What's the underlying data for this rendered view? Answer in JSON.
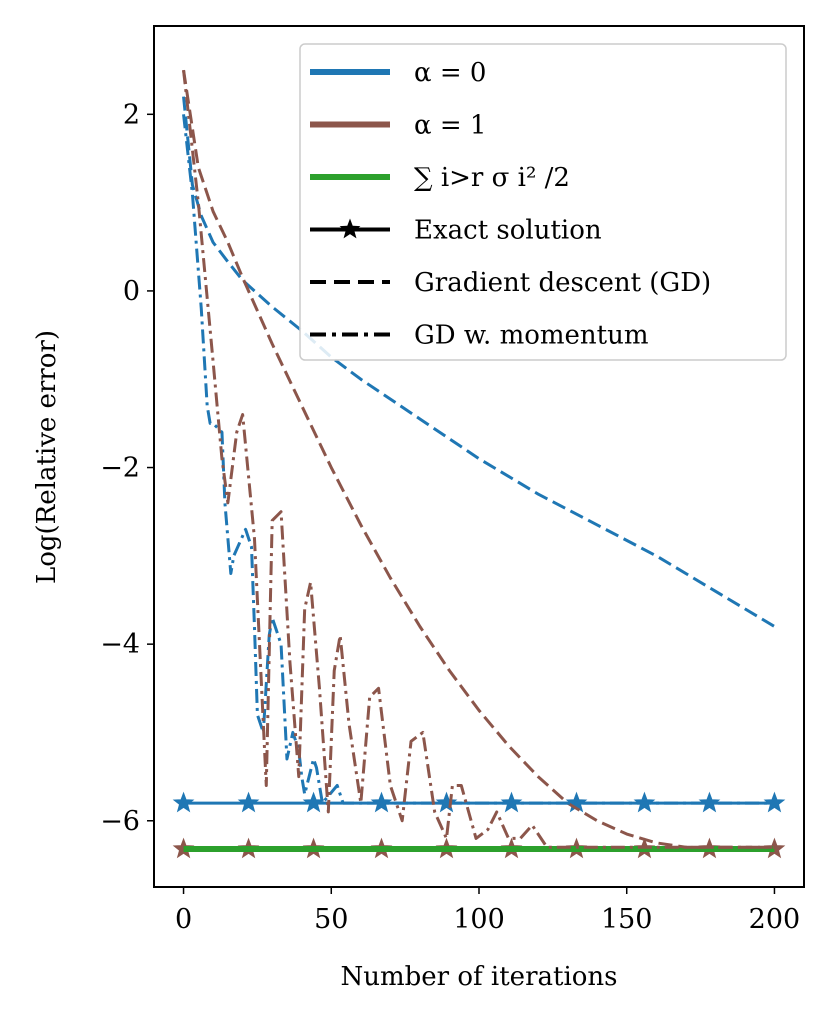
{
  "chart_data": {
    "type": "line",
    "title": "",
    "xlabel": "Number of iterations",
    "ylabel": "Log(Relative error)",
    "xlim": [
      -10,
      210
    ],
    "ylim": [
      -6.75,
      3.0
    ],
    "xticks": [
      0,
      50,
      100,
      150,
      200
    ],
    "xtick_labels": [
      "0",
      "50",
      "100",
      "150",
      "200"
    ],
    "yticks": [
      -6,
      -4,
      -2,
      0,
      2
    ],
    "ytick_labels": [
      "−6",
      "−4",
      "−2",
      "0",
      "2"
    ],
    "grid": false,
    "legend_position": "top-right",
    "colors": {
      "alpha0": "#1f77b4",
      "alpha1": "#8c564b",
      "sum": "#2ca02c",
      "black": "#000000"
    },
    "legend": [
      {
        "label": "α = 0",
        "color": "#1f77b4",
        "style": "solid-thick"
      },
      {
        "label": "α = 1",
        "color": "#8c564b",
        "style": "solid-thick"
      },
      {
        "label": "∑ i>r σ i² /2",
        "color": "#2ca02c",
        "style": "solid-thick"
      },
      {
        "label": "Exact solution",
        "color": "#000000",
        "style": "star"
      },
      {
        "label": "Gradient descent (GD)",
        "color": "#000000",
        "style": "dashed"
      },
      {
        "label": "GD w. momentum",
        "color": "#000000",
        "style": "dashdot"
      }
    ],
    "series": [
      {
        "name": "α = 0 Exact solution",
        "color": "#1f77b4",
        "style": "star",
        "x": [
          0,
          200
        ],
        "y": [
          -5.8,
          -5.8
        ],
        "marker_x": [
          0,
          22,
          44,
          67,
          89,
          111,
          133,
          156,
          178,
          200
        ]
      },
      {
        "name": "α = 1 Exact solution",
        "color": "#8c564b",
        "style": "star",
        "x": [
          0,
          200
        ],
        "y": [
          -6.32,
          -6.32
        ],
        "marker_x": [
          0,
          22,
          44,
          67,
          89,
          111,
          133,
          156,
          178,
          200
        ]
      },
      {
        "name": "∑ σ²/2 (α = 1)",
        "color": "#2ca02c",
        "style": "thick",
        "x": [
          0,
          200
        ],
        "y": [
          -6.32,
          -6.32
        ]
      },
      {
        "name": "α = 0 Gradient descent (GD)",
        "color": "#1f77b4",
        "style": "dashed",
        "x": [
          0,
          3,
          6,
          10,
          15,
          20,
          30,
          40,
          50,
          60,
          80,
          100,
          120,
          140,
          160,
          180,
          200
        ],
        "y": [
          2.2,
          1.2,
          0.85,
          0.55,
          0.33,
          0.12,
          -0.18,
          -0.45,
          -0.75,
          -1.0,
          -1.45,
          -1.9,
          -2.3,
          -2.65,
          -3.0,
          -3.4,
          -3.8
        ]
      },
      {
        "name": "α = 1 Gradient descent (GD)",
        "color": "#8c564b",
        "style": "dashed",
        "x": [
          0,
          5,
          10,
          15,
          20,
          30,
          40,
          50,
          60,
          70,
          80,
          90,
          100,
          110,
          120,
          130,
          140,
          150,
          160,
          170,
          180,
          190,
          200
        ],
        "y": [
          2.5,
          1.4,
          0.9,
          0.55,
          0.15,
          -0.6,
          -1.3,
          -2.0,
          -2.65,
          -3.25,
          -3.8,
          -4.3,
          -4.75,
          -5.15,
          -5.5,
          -5.8,
          -6.0,
          -6.15,
          -6.25,
          -6.3,
          -6.3,
          -6.3,
          -6.3
        ]
      },
      {
        "name": "α = 0 GD w. momentum",
        "color": "#1f77b4",
        "style": "dashdot",
        "x": [
          0,
          3,
          6,
          8,
          9,
          10,
          13,
          14,
          16,
          17,
          21,
          23,
          24,
          25,
          27,
          29,
          30,
          33,
          35,
          37,
          39,
          40,
          41,
          44,
          45,
          47,
          52,
          54,
          60,
          80,
          100,
          120,
          140,
          160,
          180,
          200
        ],
        "y": [
          2.0,
          1.1,
          -0.2,
          -1.3,
          -1.5,
          -1.5,
          -1.6,
          -2.4,
          -3.2,
          -3.0,
          -2.7,
          -2.9,
          -3.8,
          -4.8,
          -5.0,
          -3.9,
          -3.7,
          -4.0,
          -5.3,
          -5.0,
          -5.2,
          -5.5,
          -5.7,
          -5.3,
          -5.4,
          -5.8,
          -5.6,
          -5.8,
          -5.8,
          -5.8,
          -5.8,
          -5.8,
          -5.8,
          -5.8,
          -5.8,
          -5.8
        ]
      },
      {
        "name": "α = 1 GD w. momentum",
        "color": "#8c564b",
        "style": "dashdot",
        "x": [
          0,
          5,
          10,
          13,
          15,
          18,
          20,
          24,
          28,
          30,
          33,
          36,
          39,
          41,
          43,
          46,
          49,
          51,
          53,
          56,
          60,
          63,
          66,
          70,
          74,
          77,
          81,
          85,
          89,
          91,
          94,
          99,
          103,
          106,
          110,
          114,
          118,
          123,
          128,
          140,
          160,
          180,
          200
        ],
        "y": [
          2.5,
          1.0,
          -0.8,
          -1.9,
          -2.4,
          -1.6,
          -1.4,
          -2.8,
          -5.6,
          -2.6,
          -2.5,
          -4.2,
          -5.5,
          -3.6,
          -3.3,
          -4.5,
          -5.9,
          -4.3,
          -3.9,
          -4.9,
          -5.8,
          -4.6,
          -4.5,
          -5.6,
          -6.0,
          -5.1,
          -5.0,
          -5.9,
          -6.2,
          -5.6,
          -5.6,
          -6.2,
          -6.1,
          -5.9,
          -6.2,
          -6.2,
          -6.05,
          -6.3,
          -6.3,
          -6.3,
          -6.3,
          -6.3,
          -6.3
        ]
      }
    ]
  }
}
